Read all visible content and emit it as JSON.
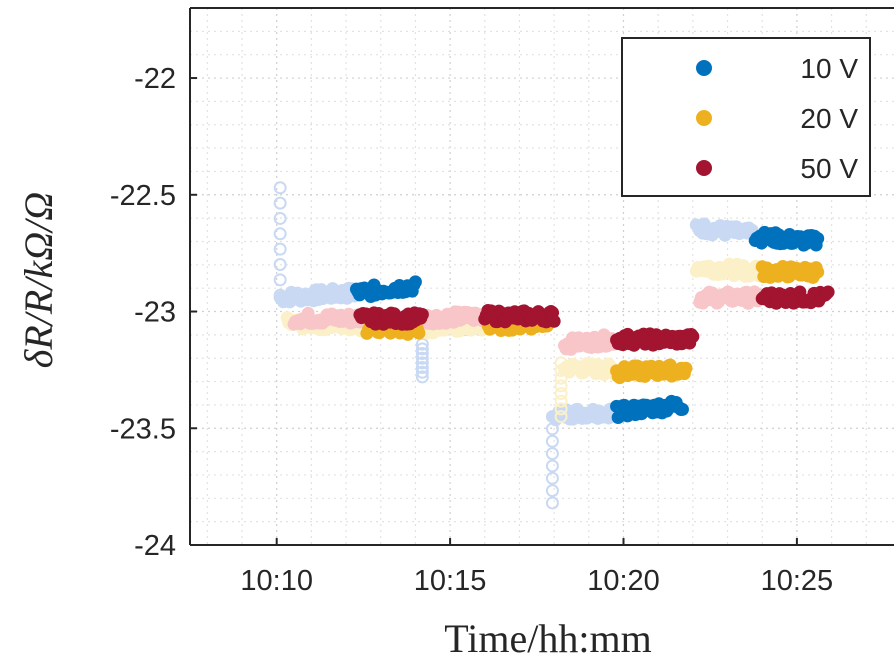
{
  "chart_data": {
    "type": "scatter",
    "xlabel": "Time/hh:mm",
    "ylabel": "δR/R/kΩ/Ω",
    "x_ticks": [
      "10:10",
      "10:15",
      "10:20",
      "10:25"
    ],
    "x_tick_values": [
      10.0,
      15.0,
      20.0,
      25.0
    ],
    "xlim": [
      7.5,
      27.8
    ],
    "y_ticks": [
      "-22",
      "-22.5",
      "-23",
      "-23.5",
      "-24"
    ],
    "y_tick_values": [
      -22,
      -22.5,
      -23,
      -23.5,
      -24
    ],
    "ylim": [
      -24,
      -21.7
    ],
    "grid": "on (major and minor, dotted)",
    "legend_position": "top-right",
    "x_unit": "minutes after 10:00",
    "series": [
      {
        "name": "10 V",
        "color": "#0072BD",
        "light_color": "#c9d9f3",
        "segments": [
          {
            "x": [
              12.3,
              14.0
            ],
            "y": [
              -22.92,
              -22.89
            ],
            "style": "filled"
          },
          {
            "x": [
              16.4,
              17.6
            ],
            "y": [
              -23.04,
              -23.05
            ],
            "style": "filled"
          },
          {
            "x": [
              19.8,
              21.7
            ],
            "y": [
              -23.43,
              -23.4
            ],
            "style": "filled"
          },
          {
            "x": [
              23.8,
              25.6
            ],
            "y": [
              -22.68,
              -22.7
            ],
            "style": "filled"
          },
          {
            "x": [
              10.1,
              12.3
            ],
            "y": [
              -22.94,
              -22.92
            ],
            "style": "faded"
          },
          {
            "x": [
              14.0,
              16.4
            ],
            "y": [
              -23.06,
              -23.05
            ],
            "style": "faded"
          },
          {
            "x": [
              18.0,
              19.8
            ],
            "y": [
              -23.44,
              -23.43
            ],
            "style": "faded"
          },
          {
            "x": [
              22.1,
              23.8
            ],
            "y": [
              -22.64,
              -22.67
            ],
            "style": "faded"
          }
        ],
        "transients": [
          {
            "x": 10.1,
            "y_from": -22.47,
            "y_to": -22.93
          },
          {
            "x": 14.2,
            "y_from": -23.14,
            "y_to": -23.28
          },
          {
            "x": 17.95,
            "y_from": -23.45,
            "y_to": -23.82
          }
        ]
      },
      {
        "name": "20 V",
        "color": "#EDB120",
        "light_color": "#fbf0c8",
        "segments": [
          {
            "x": [
              12.6,
              14.1
            ],
            "y": [
              -23.07,
              -23.08
            ],
            "style": "filled"
          },
          {
            "x": [
              16.1,
              17.8
            ],
            "y": [
              -23.06,
              -23.05
            ],
            "style": "filled"
          },
          {
            "x": [
              19.8,
              21.8
            ],
            "y": [
              -23.26,
              -23.25
            ],
            "style": "filled"
          },
          {
            "x": [
              24.0,
              25.6
            ],
            "y": [
              -22.83,
              -22.83
            ],
            "style": "filled"
          },
          {
            "x": [
              10.3,
              12.6
            ],
            "y": [
              -23.05,
              -23.06
            ],
            "style": "faded"
          },
          {
            "x": [
              14.1,
              16.1
            ],
            "y": [
              -23.07,
              -23.06
            ],
            "style": "faded"
          },
          {
            "x": [
              18.3,
              19.8
            ],
            "y": [
              -23.24,
              -23.25
            ],
            "style": "faded"
          },
          {
            "x": [
              22.1,
              24.0
            ],
            "y": [
              -22.81,
              -22.83
            ],
            "style": "faded"
          }
        ],
        "transients": [
          {
            "x": 18.2,
            "y_from": -23.22,
            "y_to": -23.45
          }
        ]
      },
      {
        "name": "50 V",
        "color": "#A2142F",
        "light_color": "#f8c5c8",
        "segments": [
          {
            "x": [
              12.4,
              14.2
            ],
            "y": [
              -23.03,
              -23.03
            ],
            "style": "filled"
          },
          {
            "x": [
              16.0,
              18.0
            ],
            "y": [
              -23.02,
              -23.02
            ],
            "style": "filled"
          },
          {
            "x": [
              19.8,
              22.0
            ],
            "y": [
              -23.12,
              -23.12
            ],
            "style": "filled"
          },
          {
            "x": [
              24.0,
              25.9
            ],
            "y": [
              -22.94,
              -22.94
            ],
            "style": "filled"
          },
          {
            "x": [
              10.5,
              12.4
            ],
            "y": [
              -23.03,
              -23.03
            ],
            "style": "faded"
          },
          {
            "x": [
              14.2,
              16.0
            ],
            "y": [
              -23.03,
              -23.02
            ],
            "style": "faded"
          },
          {
            "x": [
              18.3,
              19.8
            ],
            "y": [
              -23.14,
              -23.12
            ],
            "style": "faded"
          },
          {
            "x": [
              22.2,
              24.0
            ],
            "y": [
              -22.94,
              -22.94
            ],
            "style": "faded"
          }
        ],
        "transients": []
      }
    ]
  }
}
